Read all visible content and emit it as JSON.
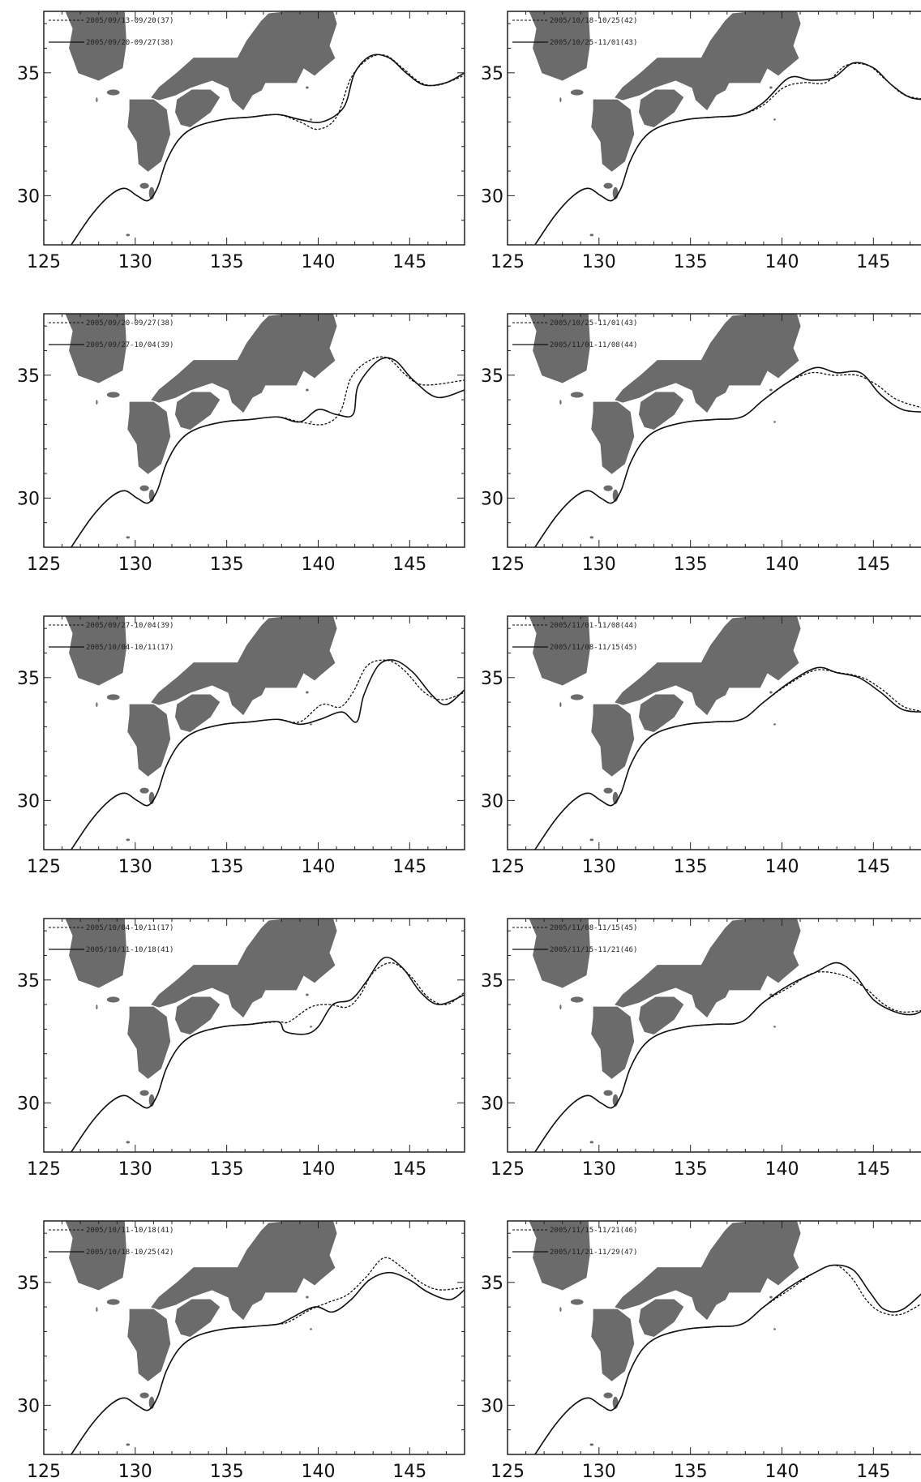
{
  "figure": {
    "x_ticks": [
      "125",
      "130",
      "135",
      "140",
      "145"
    ],
    "y_ticks": [
      "35",
      "30"
    ],
    "axes": {
      "lon_range": [
        125,
        148
      ],
      "lat_range": [
        28,
        37.5
      ]
    },
    "colors": {
      "land": "#6b6b6b",
      "line": "#111111",
      "frame": "#222222"
    }
  },
  "panels": [
    {
      "id": "p1",
      "legend": [
        "2005/09/13-09/20(37)",
        "2005/09/20-09/27(38)"
      ]
    },
    {
      "id": "p2",
      "legend": [
        "2005/10/18-10/25(42)",
        "2005/10/25-11/01(43)"
      ]
    },
    {
      "id": "p3",
      "legend": [
        "2005/09/20-09/27(38)",
        "2005/09/27-10/04(39)"
      ]
    },
    {
      "id": "p4",
      "legend": [
        "2005/10/25-11/01(43)",
        "2005/11/01-11/08(44)"
      ]
    },
    {
      "id": "p5",
      "legend": [
        "2005/09/27-10/04(39)",
        "2005/10/04-10/11(17)"
      ]
    },
    {
      "id": "p6",
      "legend": [
        "2005/11/01-11/08(44)",
        "2005/11/08-11/15(45)"
      ]
    },
    {
      "id": "p7",
      "legend": [
        "2005/10/04-10/11(17)",
        "2005/10/11-10/18(41)"
      ]
    },
    {
      "id": "p8",
      "legend": [
        "2005/11/08-11/15(45)",
        "2005/11/15-11/21(46)"
      ]
    },
    {
      "id": "p9",
      "legend": [
        "2005/10/11-10/18(41)",
        "2005/10/18-10/25(42)"
      ]
    },
    {
      "id": "p10",
      "legend": [
        "2005/11/15-11/21(46)",
        "2005/11/21-11/29(47)"
      ]
    }
  ]
}
